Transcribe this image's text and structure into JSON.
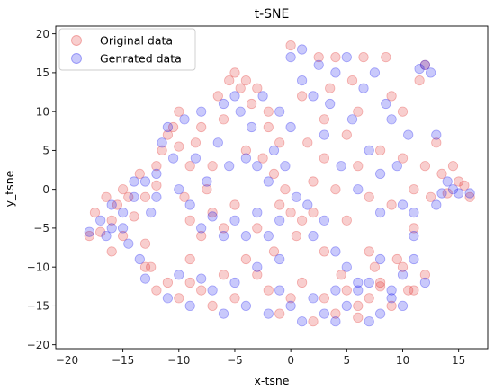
{
  "chart_data": {
    "type": "scatter",
    "title": "t-SNE",
    "xlabel": "x-tsne",
    "ylabel": "y_tsne",
    "xlim": [
      -21,
      17.6
    ],
    "ylim": [
      -20.5,
      21
    ],
    "xticks": [
      -20,
      -15,
      -10,
      -5,
      0,
      5,
      10,
      15
    ],
    "yticks": [
      -20,
      -15,
      -10,
      -5,
      0,
      5,
      10,
      15,
      20
    ],
    "grid": false,
    "legend_position": "top-left",
    "series": [
      {
        "name": "Original data",
        "color": "#e0211f",
        "opacity": 0.22,
        "points": [
          [
            -18,
            -6
          ],
          [
            -17.5,
            -3
          ],
          [
            -17,
            -5.5
          ],
          [
            -16.5,
            -1
          ],
          [
            -16,
            -4
          ],
          [
            -15.5,
            -2
          ],
          [
            -15,
            0
          ],
          [
            -14.5,
            -1
          ],
          [
            -14,
            -3.5
          ],
          [
            -13.5,
            2
          ],
          [
            -13,
            -1
          ],
          [
            -13,
            -7
          ],
          [
            -12.5,
            -10
          ],
          [
            -12,
            0.5
          ],
          [
            -12,
            3
          ],
          [
            -11.5,
            5
          ],
          [
            -11,
            7
          ],
          [
            -10.5,
            8
          ],
          [
            -10,
            5.5
          ],
          [
            -10,
            10
          ],
          [
            -9.5,
            -1
          ],
          [
            -9,
            -4
          ],
          [
            -9,
            3
          ],
          [
            -8.5,
            6
          ],
          [
            -8,
            8
          ],
          [
            -8,
            -6
          ],
          [
            -7.5,
            0
          ],
          [
            -7,
            3
          ],
          [
            -7,
            -3
          ],
          [
            -6.5,
            12
          ],
          [
            -6,
            9
          ],
          [
            -6,
            -5
          ],
          [
            -5.5,
            14
          ],
          [
            -5,
            15
          ],
          [
            -5,
            -2
          ],
          [
            -4.5,
            13
          ],
          [
            -4,
            14
          ],
          [
            -4,
            5
          ],
          [
            -3.5,
            11
          ],
          [
            -3,
            13
          ],
          [
            -3,
            -5
          ],
          [
            -2.5,
            4
          ],
          [
            -2,
            8
          ],
          [
            -2,
            10
          ],
          [
            -1.5,
            2
          ],
          [
            -1,
            -2
          ],
          [
            -1,
            6
          ],
          [
            -0.5,
            0
          ],
          [
            0,
            -3
          ],
          [
            0,
            18.5
          ],
          [
            0.5,
            -6
          ],
          [
            1,
            12
          ],
          [
            1,
            -4
          ],
          [
            1.5,
            6
          ],
          [
            2,
            -3
          ],
          [
            2.5,
            17
          ],
          [
            3,
            4
          ],
          [
            3,
            -8
          ],
          [
            3.5,
            13
          ],
          [
            4,
            0
          ],
          [
            4,
            17
          ],
          [
            4.5,
            -11
          ],
          [
            5,
            7
          ],
          [
            5,
            -4
          ],
          [
            5.5,
            14
          ],
          [
            6,
            3
          ],
          [
            6,
            -15
          ],
          [
            6.5,
            17
          ],
          [
            7,
            -8
          ],
          [
            7.5,
            -10
          ],
          [
            8,
            5
          ],
          [
            8,
            -12
          ],
          [
            8.5,
            17
          ],
          [
            9,
            -2
          ],
          [
            9.5,
            -9
          ],
          [
            10,
            4
          ],
          [
            10,
            10
          ],
          [
            10.5,
            -13
          ],
          [
            11,
            0
          ],
          [
            11,
            -5
          ],
          [
            12,
            3
          ],
          [
            12.5,
            -1
          ],
          [
            13,
            6
          ],
          [
            13.5,
            2
          ],
          [
            14,
            -0.5
          ],
          [
            14.5,
            3
          ],
          [
            15,
            1
          ],
          [
            15.5,
            0.5
          ],
          [
            16,
            -1
          ],
          [
            -11,
            -12
          ],
          [
            -10,
            -14
          ],
          [
            -9,
            -12
          ],
          [
            -8,
            -13
          ],
          [
            -7,
            -15
          ],
          [
            -6,
            -11
          ],
          [
            -5,
            -14
          ],
          [
            -4,
            -9
          ],
          [
            -3,
            -11
          ],
          [
            -2,
            -13
          ],
          [
            -1,
            -16
          ],
          [
            0,
            -14
          ],
          [
            1,
            -12
          ],
          [
            2,
            -17
          ],
          [
            3,
            -14
          ],
          [
            4,
            -16
          ],
          [
            5,
            -13
          ],
          [
            6,
            -16.5
          ],
          [
            7,
            -14
          ],
          [
            8,
            -12.5
          ],
          [
            9,
            -15
          ],
          [
            10,
            -10
          ],
          [
            11,
            -13
          ],
          [
            12,
            -11
          ],
          [
            3,
            9
          ],
          [
            2,
            1
          ],
          [
            -1.5,
            -8
          ],
          [
            6,
            10
          ],
          [
            7,
            -1
          ],
          [
            9,
            12
          ],
          [
            11.5,
            14
          ],
          [
            12,
            16
          ],
          [
            -12,
            -13
          ],
          [
            -9,
            -9
          ],
          [
            -13,
            -10
          ],
          [
            -15,
            -6
          ],
          [
            -16,
            -8
          ]
        ]
      },
      {
        "name": "Genrated data",
        "color": "#0a0aee",
        "opacity": 0.22,
        "points": [
          [
            -18,
            -5.5
          ],
          [
            -17,
            -4
          ],
          [
            -16.5,
            -6
          ],
          [
            -16,
            -2
          ],
          [
            -15,
            -5
          ],
          [
            -14.5,
            -7
          ],
          [
            -14,
            -1
          ],
          [
            -14,
            1
          ],
          [
            -13.5,
            -9
          ],
          [
            -13,
            -11.5
          ],
          [
            -13,
            1
          ],
          [
            -12.5,
            -3
          ],
          [
            -12,
            2
          ],
          [
            -11.5,
            6
          ],
          [
            -11,
            8
          ],
          [
            -10.5,
            4
          ],
          [
            -10,
            0
          ],
          [
            -9.5,
            9
          ],
          [
            -9,
            -2
          ],
          [
            -8.5,
            4
          ],
          [
            -8,
            10
          ],
          [
            -8,
            -5
          ],
          [
            -7.5,
            1
          ],
          [
            -7,
            -3.5
          ],
          [
            -6.5,
            6
          ],
          [
            -6,
            11
          ],
          [
            -6,
            -6
          ],
          [
            -5.5,
            3
          ],
          [
            -5,
            12
          ],
          [
            -5,
            -4
          ],
          [
            -4.5,
            10
          ],
          [
            -4,
            -6
          ],
          [
            -3.5,
            8
          ],
          [
            -3,
            3
          ],
          [
            -3,
            -3
          ],
          [
            -2.5,
            12
          ],
          [
            -2,
            1
          ],
          [
            -2,
            -6
          ],
          [
            -1.5,
            5
          ],
          [
            -1,
            10
          ],
          [
            -1,
            -4
          ],
          [
            -0.5,
            3
          ],
          [
            0,
            8
          ],
          [
            0,
            17
          ],
          [
            0.5,
            -1
          ],
          [
            1,
            18
          ],
          [
            1,
            14
          ],
          [
            1.5,
            -2
          ],
          [
            2,
            12
          ],
          [
            2,
            -6
          ],
          [
            2.5,
            16
          ],
          [
            3,
            7
          ],
          [
            3,
            -4
          ],
          [
            3.5,
            11
          ],
          [
            4,
            15
          ],
          [
            4,
            -8
          ],
          [
            4.5,
            3
          ],
          [
            5,
            17
          ],
          [
            5,
            -10
          ],
          [
            5.5,
            9
          ],
          [
            6,
            0
          ],
          [
            6,
            -13
          ],
          [
            6.5,
            13
          ],
          [
            7,
            5
          ],
          [
            7,
            -12
          ],
          [
            7.5,
            15
          ],
          [
            8,
            -3
          ],
          [
            8,
            -9
          ],
          [
            8.5,
            11
          ],
          [
            9,
            -14
          ],
          [
            9.5,
            3
          ],
          [
            10,
            -2
          ],
          [
            10,
            -11
          ],
          [
            10.5,
            7
          ],
          [
            11,
            -6
          ],
          [
            11.5,
            15.5
          ],
          [
            12,
            16
          ],
          [
            12.5,
            15
          ],
          [
            13,
            7
          ],
          [
            13.5,
            -0.5
          ],
          [
            14,
            1
          ],
          [
            15,
            -0.5
          ],
          [
            16,
            -0.5
          ],
          [
            -11,
            -14
          ],
          [
            -10,
            -11
          ],
          [
            -9,
            -15
          ],
          [
            -8,
            -11.5
          ],
          [
            -7,
            -13
          ],
          [
            -6,
            -16
          ],
          [
            -5,
            -12
          ],
          [
            -4,
            -15
          ],
          [
            -3,
            -10
          ],
          [
            -2,
            -16
          ],
          [
            -1,
            -13
          ],
          [
            0,
            -15
          ],
          [
            1,
            -17
          ],
          [
            2,
            -14
          ],
          [
            3,
            -16
          ],
          [
            4,
            -17
          ],
          [
            5,
            -15
          ],
          [
            6,
            -12
          ],
          [
            7,
            -17
          ],
          [
            8,
            -16
          ],
          [
            9,
            -13
          ],
          [
            10,
            -15
          ],
          [
            11,
            -9
          ],
          [
            12,
            -12
          ],
          [
            -4,
            4
          ],
          [
            -1,
            -9
          ],
          [
            4,
            -13
          ],
          [
            8,
            2
          ],
          [
            9,
            9
          ],
          [
            11,
            -3
          ],
          [
            13,
            -2
          ],
          [
            14.5,
            0
          ],
          [
            -12,
            -1
          ],
          [
            -16,
            -5
          ],
          [
            -15,
            -3
          ]
        ]
      }
    ]
  }
}
